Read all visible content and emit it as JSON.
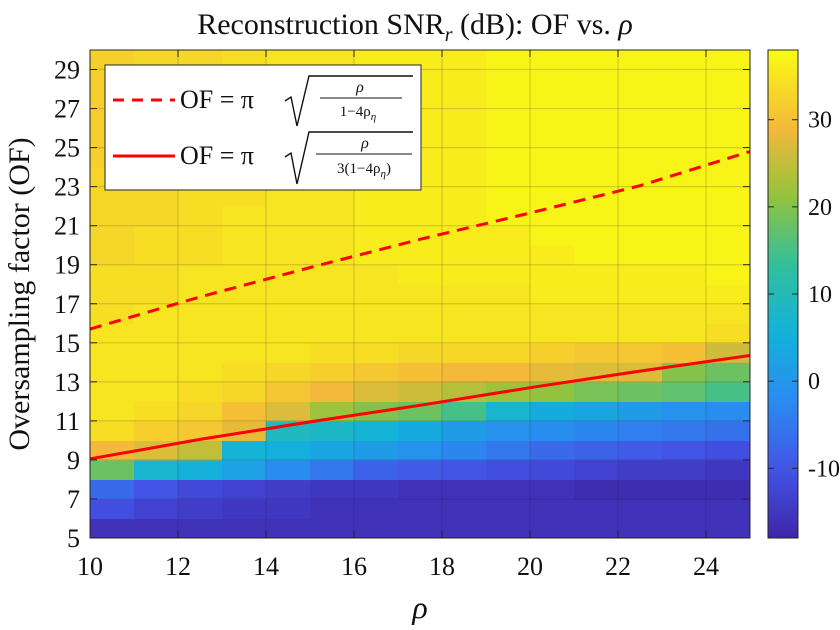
{
  "chart_data": {
    "type": "heatmap",
    "title_prefix": "Reconstruction SNR",
    "title_sub": "r",
    "title_suffix": " (dB): OF vs. ",
    "title_symbol": "ρ",
    "xlabel": "ρ",
    "ylabel": "Oversampling factor (OF)",
    "xlim": [
      10,
      25
    ],
    "ylim": [
      5,
      30
    ],
    "x_ticks": [
      10,
      12,
      14,
      16,
      18,
      20,
      22,
      24
    ],
    "y_ticks": [
      5,
      7,
      9,
      11,
      13,
      15,
      17,
      19,
      21,
      23,
      25,
      27,
      29
    ],
    "grid": true,
    "colorbar": {
      "min": -18,
      "max": 38,
      "ticks": [
        30,
        20,
        10,
        0,
        -10
      ],
      "tick_labels": [
        "30",
        "20",
        "10",
        "0",
        "-10"
      ]
    },
    "cell_size": {
      "rho": 1,
      "of": 1
    },
    "cell_values_note": "rows indexed from OF=5 upward in steps of 1; columns rho = 10..24",
    "snr_rows": [
      [
        -16,
        -16,
        -16,
        -16,
        -16,
        -16,
        -16,
        -16,
        -16,
        -16,
        -16,
        -16,
        -16,
        -16,
        -16
      ],
      [
        -11,
        -13,
        -14,
        -15,
        -15,
        -16,
        -16,
        -16,
        -16,
        -16,
        -16,
        -16,
        -16,
        -16,
        -16
      ],
      [
        -7,
        -10,
        -12,
        -13,
        -14,
        -15,
        -15,
        -16,
        -16,
        -16,
        -16,
        -17,
        -17,
        -17,
        -17
      ],
      [
        18,
        7,
        5,
        2,
        -2,
        -5,
        -8,
        -9,
        -10,
        -11,
        -12,
        -13,
        -14,
        -14,
        -15
      ],
      [
        29,
        27,
        25,
        6,
        5,
        3,
        1,
        -1,
        -3,
        -5,
        -7,
        -8,
        -9,
        -10,
        -11
      ],
      [
        34,
        32,
        31,
        28,
        9,
        8,
        6,
        4,
        1,
        -1,
        -2,
        -3,
        -4,
        -5,
        -6
      ],
      [
        35,
        34,
        33,
        30,
        27,
        22,
        20,
        18,
        15,
        7,
        4,
        3,
        1,
        -1,
        -2
      ],
      [
        35,
        35,
        34,
        33,
        31,
        29,
        27,
        26,
        24,
        22,
        21,
        19,
        18,
        17,
        15
      ],
      [
        35,
        35,
        35,
        34,
        33,
        32,
        31,
        30,
        29,
        29,
        28,
        27,
        27,
        20,
        18
      ],
      [
        35,
        35,
        35,
        35,
        35,
        34,
        34,
        33,
        33,
        33,
        32,
        31,
        31,
        30,
        26
      ],
      [
        35,
        35,
        35,
        35,
        35,
        35,
        35,
        35,
        35,
        35,
        35,
        35,
        35,
        35,
        34
      ],
      [
        34,
        35,
        35,
        35,
        35,
        35,
        35,
        35,
        35,
        35,
        35,
        35,
        35,
        35,
        35
      ],
      [
        34,
        34,
        35,
        35,
        35,
        35,
        35,
        35,
        35,
        35,
        36,
        36,
        36,
        36,
        36
      ],
      [
        34,
        34,
        35,
        35,
        35,
        35,
        35,
        36,
        36,
        36,
        36,
        36,
        36,
        36,
        37
      ],
      [
        33,
        34,
        34,
        35,
        35,
        35,
        36,
        36,
        36,
        36,
        36,
        37,
        37,
        37,
        37
      ],
      [
        33,
        34,
        34,
        35,
        35,
        35,
        36,
        36,
        36,
        36,
        37,
        37,
        37,
        37,
        37
      ],
      [
        33,
        33,
        34,
        35,
        35,
        35,
        36,
        36,
        36,
        37,
        37,
        37,
        37,
        37,
        37
      ],
      [
        33,
        33,
        34,
        34,
        35,
        35,
        36,
        36,
        36,
        37,
        37,
        37,
        37,
        37,
        37
      ],
      [
        33,
        33,
        34,
        34,
        35,
        35,
        36,
        36,
        36,
        37,
        37,
        37,
        37,
        37,
        37
      ],
      [
        32,
        33,
        34,
        34,
        35,
        35,
        36,
        36,
        36,
        37,
        37,
        37,
        37,
        37,
        37
      ],
      [
        32,
        33,
        34,
        34,
        35,
        35,
        36,
        36,
        36,
        37,
        37,
        37,
        37,
        37,
        37
      ],
      [
        32,
        33,
        33,
        34,
        35,
        35,
        36,
        36,
        36,
        37,
        37,
        37,
        37,
        37,
        37
      ],
      [
        32,
        33,
        33,
        34,
        35,
        35,
        36,
        36,
        36,
        37,
        37,
        37,
        37,
        37,
        37
      ],
      [
        32,
        33,
        33,
        34,
        35,
        35,
        36,
        36,
        36,
        37,
        37,
        37,
        37,
        37,
        37
      ],
      [
        32,
        33,
        33,
        34,
        35,
        35,
        36,
        36,
        36,
        37,
        37,
        37,
        37,
        37,
        37
      ]
    ],
    "lines": [
      {
        "name": "dashed",
        "style": "dashed",
        "color": "#ff0000",
        "label_lhs": "OF = π",
        "frac_num": "ρ",
        "frac_den": "1−4ρ",
        "frac_den_sub": "η",
        "frac_den_prefix": "",
        "frac_den_suffix": "",
        "x": [
          10,
          12.5,
          15,
          17.5,
          20,
          22.5,
          25
        ],
        "y": [
          15.7,
          17.35,
          18.85,
          20.3,
          21.65,
          23.05,
          24.8
        ]
      },
      {
        "name": "solid",
        "style": "solid",
        "color": "#ff0000",
        "label_lhs": "OF = π",
        "frac_num": "ρ",
        "frac_den": "3(1−4ρ",
        "frac_den_sub": "η",
        "frac_den_suffix": ")",
        "x": [
          10,
          12.5,
          15,
          17.5,
          20,
          22.5,
          25
        ],
        "y": [
          9.05,
          10.05,
          10.95,
          11.8,
          12.7,
          13.55,
          14.35
        ]
      }
    ],
    "legend_position": "top-left"
  }
}
